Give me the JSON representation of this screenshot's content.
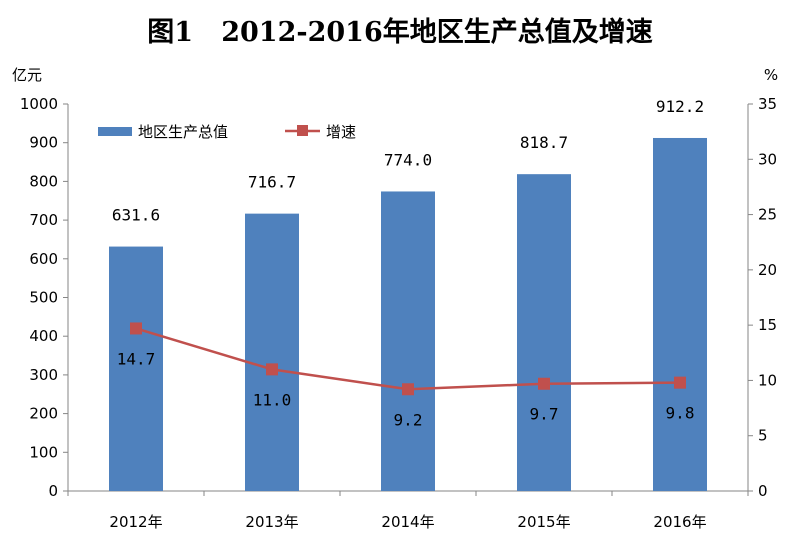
{
  "chart_data": {
    "type": "bar",
    "title": "图1   2012-2016年地区生产总值及增速",
    "categories": [
      "2012年",
      "2013年",
      "2014年",
      "2015年",
      "2016年"
    ],
    "ylabel": "亿元",
    "y2label": "%",
    "ylim": [
      0,
      1000
    ],
    "y2lim": [
      0,
      35
    ],
    "yticks": [
      "0",
      "100",
      "200",
      "300",
      "400",
      "500",
      "600",
      "700",
      "800",
      "900",
      "1000"
    ],
    "y2ticks": [
      "0",
      "5",
      "10",
      "15",
      "20",
      "25",
      "30",
      "35"
    ],
    "legend_position": "top-left",
    "grid": false,
    "series": [
      {
        "name": "地区生产总值",
        "type": "bar",
        "axis": "left",
        "color": "#4F81BD",
        "values": [
          631.6,
          716.7,
          774.0,
          818.7,
          912.2
        ],
        "labels": [
          "631.6",
          "716.7",
          "774.0",
          "818.7",
          "912.2"
        ]
      },
      {
        "name": "增速",
        "type": "line",
        "axis": "right",
        "color": "#C0504D",
        "values": [
          14.7,
          11.0,
          9.2,
          9.7,
          9.8
        ],
        "labels": [
          "14.7",
          "11.0",
          "9.2",
          "9.7",
          "9.8"
        ]
      }
    ]
  }
}
